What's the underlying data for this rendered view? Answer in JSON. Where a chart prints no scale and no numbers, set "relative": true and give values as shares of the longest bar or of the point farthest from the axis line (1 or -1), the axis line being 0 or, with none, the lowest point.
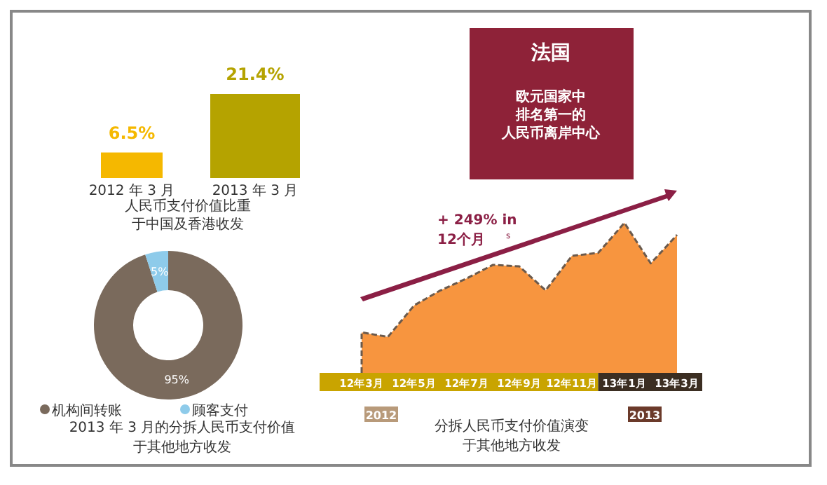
{
  "chart_data": [
    {
      "type": "bar",
      "title": "人民币支付价值比重于中国及香港收发",
      "categories": [
        "2012 年 3 月",
        "2013 年 3 月"
      ],
      "values": [
        6.5,
        21.4
      ],
      "value_labels": [
        "6.5%",
        "21.4%"
      ],
      "colors": [
        "#f5b800",
        "#b5a300"
      ]
    },
    {
      "type": "donut",
      "title": "2013 年 3 月的分拆人民币支付价值于其他地方收发",
      "categories": [
        "机构间转账",
        "顾客支付"
      ],
      "values": [
        95,
        5
      ],
      "value_labels": [
        "95%",
        "5%"
      ],
      "colors": [
        "#7a6a5c",
        "#8ecbea"
      ],
      "legend": "bottom"
    },
    {
      "type": "other",
      "title": "法国",
      "annotations": [
        "欧元国家中",
        "排名第一的",
        "人民币离岸中心"
      ]
    },
    {
      "type": "area",
      "relative": true,
      "title": "分拆人民币支付价值演变于其他地方收发",
      "categories": [
        "12年3月",
        null,
        "12年5月",
        null,
        "12年7月",
        null,
        "12年9月",
        null,
        "12年11月",
        null,
        "13年1月",
        null,
        "13年3月"
      ],
      "values": [
        0.27,
        0.24,
        0.45,
        0.55,
        0.63,
        0.72,
        0.71,
        0.55,
        0.78,
        0.8,
        1,
        0.73,
        0.92
      ],
      "color": "#f7953f",
      "annotations": [
        "+ 249% in\n12个月",
        "s",
        "2012",
        "2013"
      ]
    }
  ]
}
